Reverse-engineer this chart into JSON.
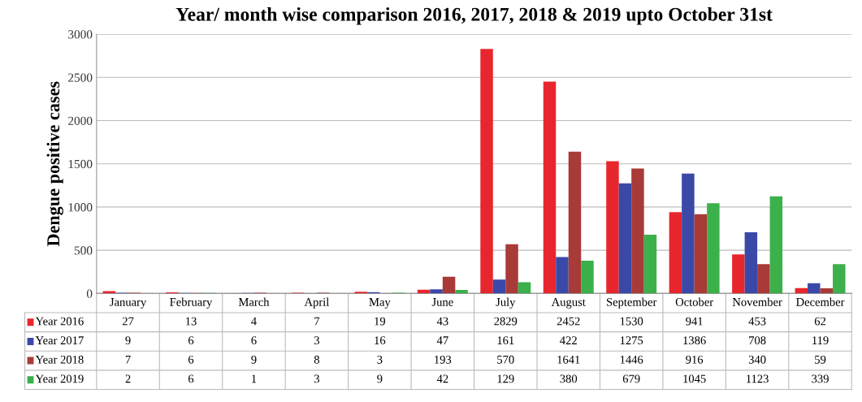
{
  "chart_data": {
    "type": "bar",
    "title": "Year/ month wise comparison 2016, 2017, 2018 & 2019 upto October 31st",
    "ylabel": "Dengue positive cases",
    "categories": [
      "January",
      "February",
      "March",
      "April",
      "May",
      "June",
      "July",
      "August",
      "September",
      "October",
      "November",
      "December"
    ],
    "series": [
      {
        "name": "Year 2016",
        "color": "#e8262e",
        "values": [
          27,
          13,
          4,
          7,
          19,
          43,
          2829,
          2452,
          1530,
          941,
          453,
          62
        ]
      },
      {
        "name": "Year 2017",
        "color": "#3a49a8",
        "values": [
          9,
          6,
          6,
          3,
          16,
          47,
          161,
          422,
          1275,
          1386,
          708,
          119
        ]
      },
      {
        "name": "Year 2018",
        "color": "#a83a38",
        "values": [
          7,
          6,
          9,
          8,
          3,
          193,
          570,
          1641,
          1446,
          916,
          340,
          59
        ]
      },
      {
        "name": "Year 2019",
        "color": "#3cb04a",
        "values": [
          2,
          6,
          1,
          3,
          9,
          42,
          129,
          380,
          679,
          1045,
          1123,
          339
        ]
      }
    ],
    "ylim": [
      0,
      3000
    ],
    "yticks": [
      0,
      500,
      1000,
      1500,
      2000,
      2500,
      3000
    ],
    "grid": "y",
    "data_labels": true,
    "legend": "bottom"
  }
}
